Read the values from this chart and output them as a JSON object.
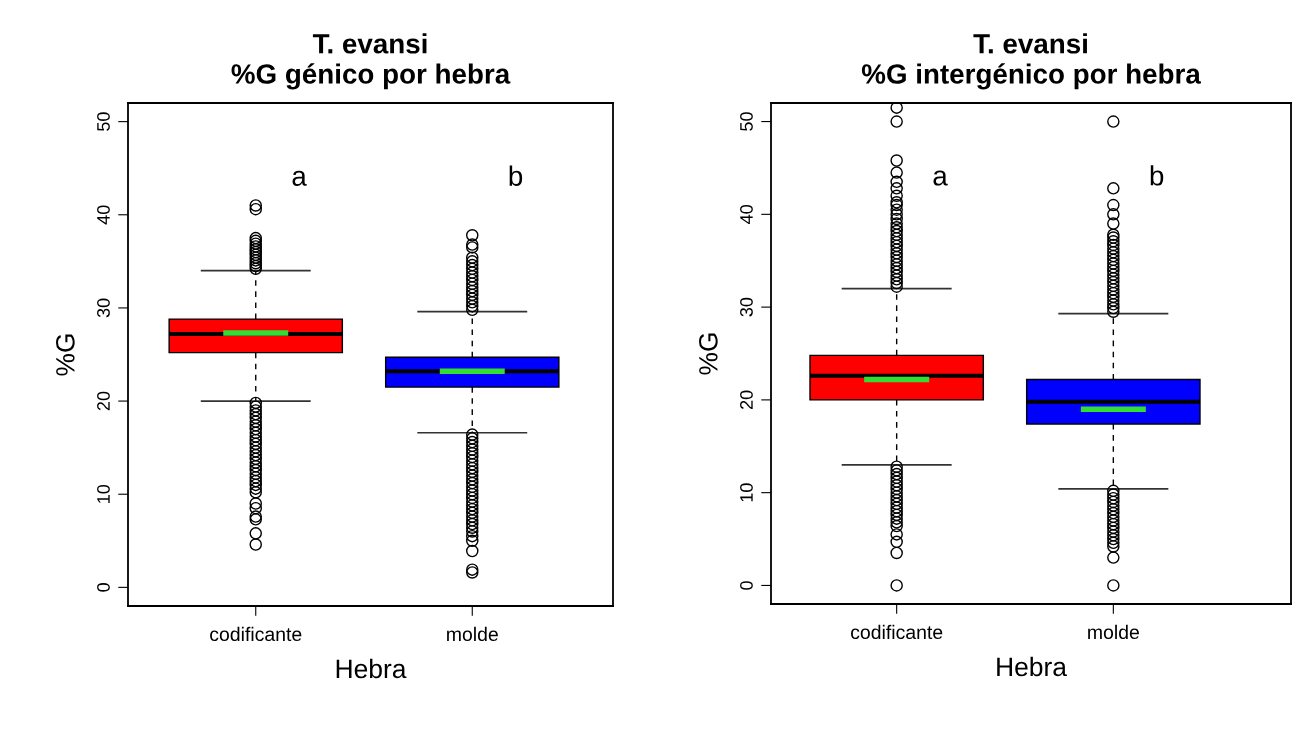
{
  "chart_data": [
    {
      "type": "box",
      "title": "T. evansi\n%G génico por hebra",
      "xlabel": "Hebra",
      "ylabel": "%G",
      "categories": [
        "codificante",
        "molde"
      ],
      "colors": [
        "#ff0000",
        "#0000ff"
      ],
      "ylim": [
        -2,
        52
      ],
      "yticks": [
        0,
        10,
        20,
        30,
        40,
        50
      ],
      "annotations": [
        "a",
        "b"
      ],
      "boxes": [
        {
          "low": 20.0,
          "q1": 25.2,
          "median": 27.2,
          "q3": 28.8,
          "high": 34.0,
          "mean": 27.3,
          "outliers": [
            34.2,
            34.5,
            34.8,
            35.1,
            35.4,
            35.7,
            36.0,
            36.3,
            36.6,
            36.9,
            37.2,
            37.5,
            40.6,
            41.0,
            19.8,
            19.4,
            19.0,
            18.6,
            18.2,
            17.8,
            17.4,
            17.0,
            16.6,
            16.2,
            15.8,
            15.4,
            15.0,
            14.6,
            14.2,
            13.8,
            13.4,
            13.0,
            12.6,
            12.2,
            11.8,
            11.4,
            11.0,
            10.6,
            10.2,
            9.0,
            8.5,
            7.6,
            7.3,
            5.8,
            4.6
          ]
        },
        {
          "low": 16.6,
          "q1": 21.5,
          "median": 23.2,
          "q3": 24.7,
          "high": 29.6,
          "mean": 23.2,
          "outliers": [
            29.8,
            30.2,
            30.6,
            31.0,
            31.4,
            31.8,
            32.2,
            32.6,
            33.0,
            33.4,
            33.8,
            34.2,
            34.6,
            35.0,
            35.4,
            36.5,
            36.8,
            37.8,
            16.4,
            16.0,
            15.6,
            15.2,
            14.8,
            14.4,
            14.0,
            13.6,
            13.2,
            12.8,
            12.4,
            12.0,
            11.6,
            11.2,
            10.8,
            10.4,
            10.0,
            9.6,
            9.2,
            8.8,
            8.4,
            8.0,
            7.6,
            7.2,
            6.8,
            6.4,
            6.0,
            5.5,
            5.0,
            3.9,
            1.9,
            1.6
          ]
        }
      ]
    },
    {
      "type": "box",
      "title": "T. evansi\n%G intergénico por hebra",
      "xlabel": "Hebra",
      "ylabel": "%G",
      "categories": [
        "codificante",
        "molde"
      ],
      "colors": [
        "#ff0000",
        "#0000ff"
      ],
      "ylim": [
        -2,
        52
      ],
      "yticks": [
        0,
        10,
        20,
        30,
        40,
        50
      ],
      "annotations": [
        "a",
        "b"
      ],
      "boxes": [
        {
          "low": 13.0,
          "q1": 20.0,
          "median": 22.6,
          "q3": 24.8,
          "high": 32.0,
          "mean": 22.2,
          "outliers": [
            32.2,
            32.6,
            33.0,
            33.4,
            33.8,
            34.2,
            34.6,
            35.0,
            35.4,
            35.8,
            36.2,
            36.6,
            37.0,
            37.4,
            37.8,
            38.2,
            38.6,
            39.0,
            39.5,
            40.0,
            40.5,
            41.0,
            41.3,
            42.0,
            42.8,
            43.5,
            44.5,
            45.8,
            50.0,
            51.5,
            12.8,
            12.4,
            12.0,
            11.6,
            11.2,
            10.8,
            10.4,
            10.0,
            9.6,
            9.2,
            8.8,
            8.4,
            8.0,
            7.6,
            7.2,
            6.8,
            6.4,
            5.5,
            4.7,
            3.5,
            0.0
          ]
        },
        {
          "low": 10.4,
          "q1": 17.4,
          "median": 19.8,
          "q3": 22.2,
          "high": 29.3,
          "mean": 19.0,
          "outliers": [
            29.5,
            29.9,
            30.3,
            30.7,
            31.1,
            31.5,
            31.9,
            32.3,
            32.7,
            33.1,
            33.5,
            33.9,
            34.3,
            34.7,
            35.1,
            35.5,
            35.9,
            36.3,
            36.7,
            37.1,
            37.5,
            37.8,
            39.0,
            40.0,
            41.0,
            42.8,
            50.0,
            10.2,
            9.8,
            9.4,
            9.0,
            8.6,
            8.2,
            7.8,
            7.4,
            7.0,
            6.6,
            6.2,
            5.8,
            5.4,
            5.0,
            4.6,
            4.2,
            3.0,
            0.0
          ]
        }
      ]
    }
  ]
}
